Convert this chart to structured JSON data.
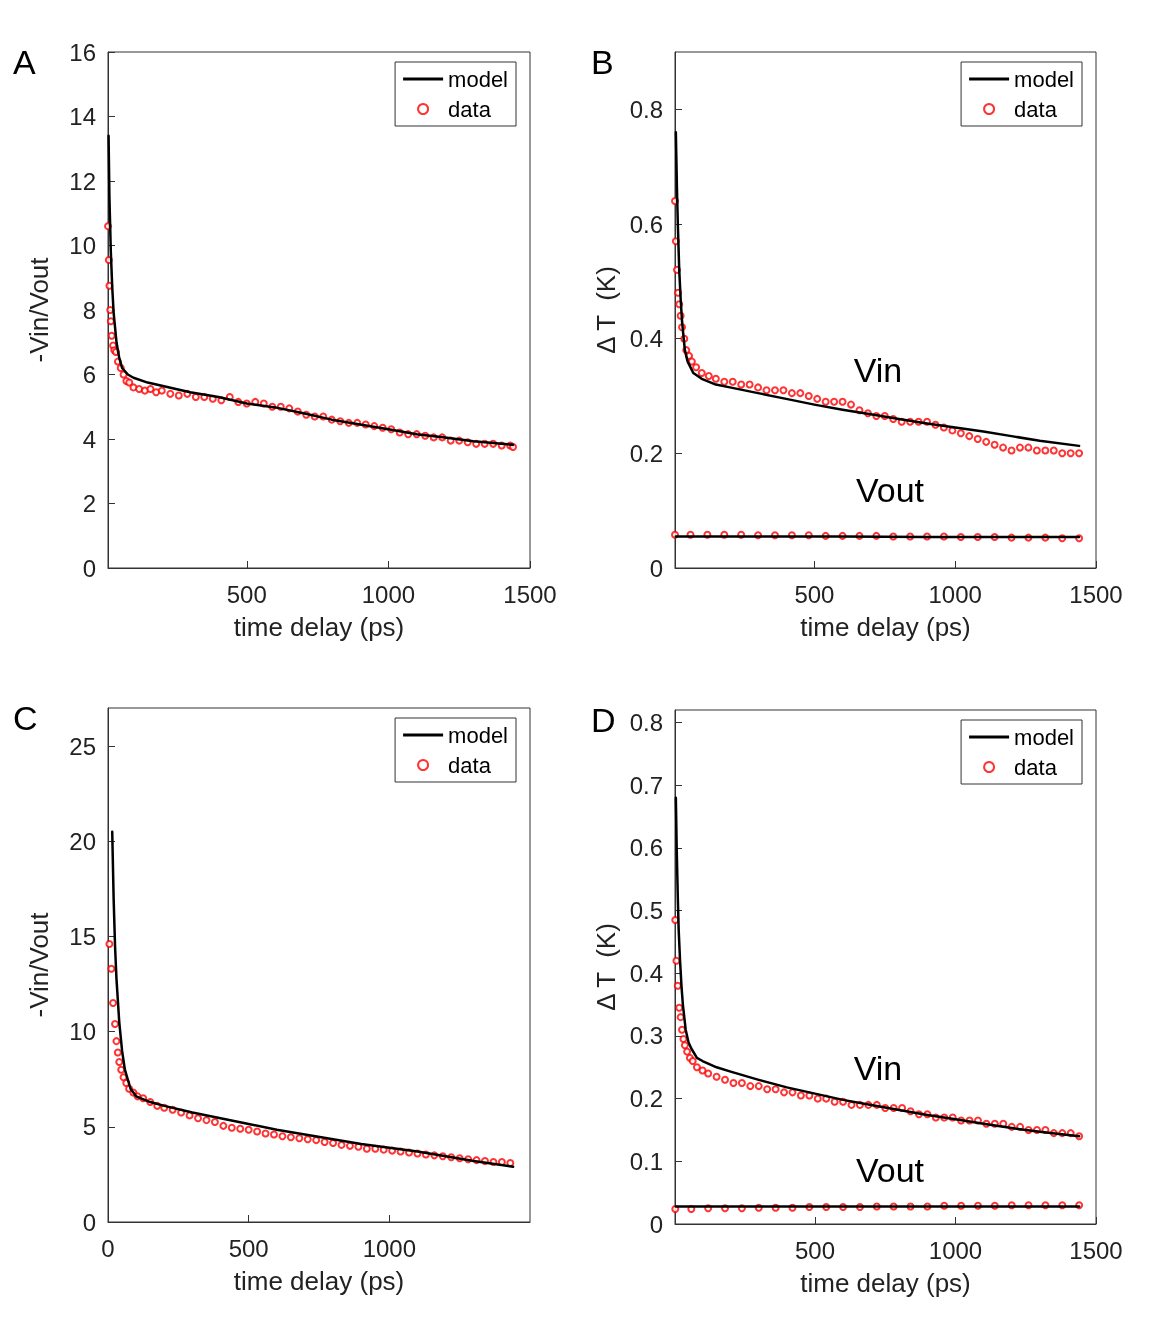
{
  "chart_data": [
    {
      "type": "line",
      "title": "A",
      "xlabel": "time delay (ps)",
      "ylabel": "-Vin/Vout",
      "xlim": [
        10,
        1500
      ],
      "xticks": [
        500,
        1000,
        1500
      ],
      "ylim": [
        0,
        16
      ],
      "yticks": [
        0,
        2,
        4,
        6,
        8,
        10,
        12,
        14,
        16
      ],
      "legend": "top right",
      "grid": false,
      "series": [
        {
          "name": "model",
          "color": "#000000",
          "x": [
            12,
            15,
            20,
            25,
            30,
            40,
            50,
            60,
            80,
            100,
            150,
            200,
            300,
            400,
            500,
            600,
            700,
            800,
            900,
            1000,
            1100,
            1200,
            1300,
            1400,
            1440
          ],
          "values": [
            13.4,
            11.5,
            9.8,
            8.7,
            7.9,
            7.0,
            6.5,
            6.2,
            6.0,
            5.9,
            5.75,
            5.65,
            5.45,
            5.3,
            5.1,
            4.98,
            4.8,
            4.6,
            4.45,
            4.3,
            4.15,
            4.05,
            3.93,
            3.85,
            3.82
          ]
        },
        {
          "name": "data",
          "type": "scatter",
          "marker": "circle",
          "color": "#ff0000",
          "x": [
            10,
            13,
            15,
            18,
            20,
            23,
            28,
            32,
            38,
            45,
            55,
            65,
            75,
            85,
            100,
            120,
            140,
            160,
            180,
            200,
            230,
            260,
            290,
            320,
            350,
            380,
            410,
            440,
            470,
            500,
            530,
            560,
            590,
            620,
            650,
            680,
            710,
            740,
            770,
            800,
            830,
            860,
            890,
            920,
            950,
            980,
            1010,
            1040,
            1070,
            1100,
            1130,
            1160,
            1190,
            1220,
            1250,
            1280,
            1310,
            1340,
            1370,
            1400,
            1430,
            1440
          ],
          "values": [
            10.6,
            9.55,
            8.75,
            8.0,
            7.65,
            7.2,
            6.9,
            6.75,
            6.7,
            6.4,
            6.2,
            6.0,
            5.8,
            5.75,
            5.6,
            5.55,
            5.5,
            5.55,
            5.45,
            5.5,
            5.4,
            5.35,
            5.4,
            5.3,
            5.3,
            5.25,
            5.2,
            5.3,
            5.15,
            5.1,
            5.15,
            5.1,
            5.0,
            5.0,
            4.95,
            4.85,
            4.75,
            4.7,
            4.7,
            4.6,
            4.55,
            4.5,
            4.5,
            4.45,
            4.4,
            4.35,
            4.3,
            4.2,
            4.15,
            4.15,
            4.1,
            4.05,
            4.05,
            3.95,
            3.95,
            3.9,
            3.85,
            3.85,
            3.85,
            3.8,
            3.8,
            3.75
          ]
        }
      ]
    },
    {
      "type": "line",
      "title": "B",
      "xlabel": "time delay (ps)",
      "ylabel": "Δ T  (K)",
      "xlim": [
        5,
        1500
      ],
      "xticks": [
        500,
        1000,
        1500
      ],
      "ylim": [
        0,
        0.9
      ],
      "yticks": [
        0,
        0.2,
        0.4,
        0.6,
        0.8
      ],
      "legend": "top right",
      "grid": false,
      "annotations": [
        "Vin",
        "Vout"
      ],
      "series": [
        {
          "name": "model",
          "color": "#000000",
          "x": [
            8,
            12,
            15,
            20,
            25,
            30,
            40,
            50,
            70,
            100,
            150,
            200,
            300,
            400,
            500,
            600,
            700,
            800,
            900,
            1000,
            1100,
            1200,
            1300,
            1440
          ],
          "values": [
            0.76,
            0.66,
            0.6,
            0.52,
            0.47,
            0.43,
            0.38,
            0.36,
            0.34,
            0.33,
            0.32,
            0.315,
            0.305,
            0.295,
            0.285,
            0.276,
            0.268,
            0.26,
            0.252,
            0.245,
            0.238,
            0.23,
            0.222,
            0.213
          ]
        },
        {
          "name": "data",
          "type": "scatter",
          "marker": "circle",
          "color": "#ff0000",
          "x": [
            5,
            8,
            12,
            16,
            20,
            25,
            30,
            38,
            45,
            55,
            65,
            80,
            100,
            125,
            150,
            180,
            210,
            240,
            270,
            300,
            330,
            360,
            390,
            420,
            450,
            480,
            510,
            540,
            570,
            600,
            630,
            660,
            690,
            720,
            750,
            780,
            810,
            840,
            870,
            900,
            930,
            960,
            990,
            1020,
            1050,
            1080,
            1110,
            1140,
            1170,
            1200,
            1230,
            1260,
            1290,
            1320,
            1350,
            1380,
            1410,
            1440
          ],
          "values": [
            0.64,
            0.57,
            0.52,
            0.48,
            0.46,
            0.44,
            0.42,
            0.4,
            0.38,
            0.37,
            0.36,
            0.35,
            0.34,
            0.335,
            0.33,
            0.325,
            0.325,
            0.32,
            0.32,
            0.315,
            0.31,
            0.31,
            0.31,
            0.305,
            0.305,
            0.3,
            0.295,
            0.29,
            0.29,
            0.29,
            0.285,
            0.275,
            0.27,
            0.265,
            0.265,
            0.26,
            0.255,
            0.255,
            0.255,
            0.255,
            0.25,
            0.245,
            0.24,
            0.235,
            0.23,
            0.225,
            0.22,
            0.215,
            0.21,
            0.205,
            0.21,
            0.21,
            0.205,
            0.205,
            0.205,
            0.2,
            0.2,
            0.2
          ]
        },
        {
          "color": "#000000",
          "x": [
            8,
            300,
            600,
            900,
            1200,
            1440
          ],
          "values": [
            0.055,
            0.055,
            0.055,
            0.054,
            0.054,
            0.054
          ]
        },
        {
          "type": "scatter",
          "marker": "circle",
          "color": "#ff0000",
          "x": [
            5,
            60,
            120,
            180,
            240,
            300,
            360,
            420,
            480,
            540,
            600,
            660,
            720,
            780,
            840,
            900,
            960,
            1020,
            1080,
            1140,
            1200,
            1260,
            1320,
            1380,
            1440
          ],
          "values": [
            0.058,
            0.058,
            0.058,
            0.058,
            0.058,
            0.057,
            0.057,
            0.057,
            0.057,
            0.056,
            0.056,
            0.056,
            0.056,
            0.055,
            0.055,
            0.055,
            0.055,
            0.054,
            0.054,
            0.054,
            0.053,
            0.053,
            0.053,
            0.052,
            0.052
          ]
        }
      ]
    },
    {
      "type": "line",
      "title": "C",
      "xlabel": "time delay (ps)",
      "ylabel": "-Vin/Vout",
      "xlim": [
        0,
        1500
      ],
      "xticks": [
        0,
        500,
        1000
      ],
      "ylim": [
        0,
        27
      ],
      "yticks": [
        0,
        5,
        10,
        15,
        20,
        25
      ],
      "legend": "top right",
      "grid": false,
      "series": [
        {
          "name": "model",
          "color": "#000000",
          "x": [
            15,
            20,
            25,
            30,
            40,
            50,
            60,
            80,
            100,
            150,
            200,
            300,
            400,
            500,
            600,
            700,
            800,
            900,
            1000,
            1100,
            1200,
            1300,
            1440
          ],
          "values": [
            20.5,
            17,
            14.5,
            12.8,
            10.5,
            9.0,
            8.0,
            7.0,
            6.6,
            6.3,
            6.1,
            5.75,
            5.45,
            5.15,
            4.85,
            4.6,
            4.35,
            4.1,
            3.9,
            3.7,
            3.45,
            3.2,
            2.9
          ]
        },
        {
          "name": "data",
          "type": "scatter",
          "marker": "circle",
          "color": "#ff0000",
          "x": [
            5,
            12,
            18,
            25,
            30,
            35,
            40,
            47,
            55,
            65,
            75,
            90,
            105,
            125,
            150,
            175,
            200,
            230,
            260,
            290,
            320,
            350,
            380,
            410,
            440,
            470,
            500,
            530,
            560,
            590,
            620,
            650,
            680,
            710,
            740,
            770,
            800,
            830,
            860,
            890,
            920,
            950,
            980,
            1010,
            1040,
            1070,
            1100,
            1130,
            1160,
            1190,
            1220,
            1250,
            1280,
            1310,
            1340,
            1370,
            1400,
            1430
          ],
          "values": [
            14.6,
            13.3,
            11.5,
            10.4,
            9.5,
            8.9,
            8.4,
            8.0,
            7.6,
            7.3,
            7.0,
            6.8,
            6.6,
            6.5,
            6.3,
            6.1,
            6.0,
            5.9,
            5.75,
            5.6,
            5.45,
            5.35,
            5.25,
            5.05,
            4.95,
            4.9,
            4.85,
            4.75,
            4.65,
            4.6,
            4.5,
            4.45,
            4.4,
            4.35,
            4.3,
            4.2,
            4.15,
            4.05,
            4.0,
            3.95,
            3.85,
            3.85,
            3.8,
            3.75,
            3.7,
            3.65,
            3.6,
            3.55,
            3.5,
            3.45,
            3.4,
            3.35,
            3.3,
            3.25,
            3.2,
            3.15,
            3.15,
            3.1
          ]
        }
      ]
    },
    {
      "type": "line",
      "title": "D",
      "xlabel": "time delay (ps)",
      "ylabel": "Δ T  (K)",
      "xlim": [
        2,
        1500
      ],
      "xticks": [
        500,
        1000,
        1500
      ],
      "ylim": [
        0,
        0.82
      ],
      "yticks": [
        0,
        0.1,
        0.2,
        0.3,
        0.4,
        0.5,
        0.6,
        0.7,
        0.8
      ],
      "legend": "top right",
      "grid": false,
      "annotations": [
        "Vin",
        "Vout"
      ],
      "series": [
        {
          "name": "model",
          "color": "#000000",
          "x": [
            5,
            8,
            12,
            15,
            20,
            25,
            30,
            40,
            50,
            60,
            80,
            100,
            150,
            200,
            300,
            400,
            500,
            600,
            700,
            800,
            900,
            1000,
            1100,
            1200,
            1300,
            1440
          ],
          "values": [
            0.68,
            0.6,
            0.52,
            0.47,
            0.42,
            0.38,
            0.35,
            0.31,
            0.29,
            0.28,
            0.265,
            0.26,
            0.25,
            0.243,
            0.23,
            0.218,
            0.208,
            0.198,
            0.19,
            0.182,
            0.174,
            0.167,
            0.16,
            0.153,
            0.147,
            0.14
          ]
        },
        {
          "name": "data",
          "type": "scatter",
          "marker": "circle",
          "color": "#ff0000",
          "x": [
            3,
            7,
            12,
            17,
            22,
            27,
            32,
            37,
            45,
            55,
            65,
            80,
            100,
            120,
            150,
            180,
            210,
            240,
            270,
            300,
            330,
            360,
            390,
            420,
            450,
            480,
            510,
            540,
            570,
            600,
            630,
            660,
            690,
            720,
            750,
            780,
            810,
            840,
            870,
            900,
            930,
            960,
            990,
            1020,
            1050,
            1080,
            1110,
            1140,
            1170,
            1200,
            1230,
            1260,
            1290,
            1320,
            1350,
            1380,
            1410,
            1440
          ],
          "values": [
            0.485,
            0.42,
            0.38,
            0.345,
            0.33,
            0.31,
            0.295,
            0.285,
            0.275,
            0.265,
            0.26,
            0.25,
            0.245,
            0.24,
            0.235,
            0.23,
            0.225,
            0.225,
            0.22,
            0.22,
            0.215,
            0.215,
            0.21,
            0.21,
            0.205,
            0.205,
            0.2,
            0.2,
            0.195,
            0.195,
            0.19,
            0.19,
            0.19,
            0.19,
            0.185,
            0.185,
            0.185,
            0.18,
            0.175,
            0.175,
            0.17,
            0.17,
            0.17,
            0.165,
            0.165,
            0.165,
            0.16,
            0.16,
            0.16,
            0.155,
            0.155,
            0.15,
            0.15,
            0.15,
            0.145,
            0.145,
            0.145,
            0.14
          ]
        },
        {
          "color": "#000000",
          "x": [
            5,
            300,
            600,
            900,
            1200,
            1440
          ],
          "values": [
            0.028,
            0.028,
            0.028,
            0.028,
            0.028,
            0.028
          ]
        },
        {
          "type": "scatter",
          "marker": "circle",
          "color": "#ff0000",
          "x": [
            3,
            60,
            120,
            180,
            240,
            300,
            360,
            420,
            480,
            540,
            600,
            660,
            720,
            780,
            840,
            900,
            960,
            1020,
            1080,
            1140,
            1200,
            1260,
            1320,
            1380,
            1440
          ],
          "values": [
            0.024,
            0.024,
            0.025,
            0.025,
            0.025,
            0.026,
            0.026,
            0.026,
            0.027,
            0.027,
            0.027,
            0.027,
            0.028,
            0.028,
            0.028,
            0.028,
            0.029,
            0.029,
            0.029,
            0.029,
            0.03,
            0.03,
            0.03,
            0.03,
            0.03
          ]
        }
      ]
    }
  ]
}
